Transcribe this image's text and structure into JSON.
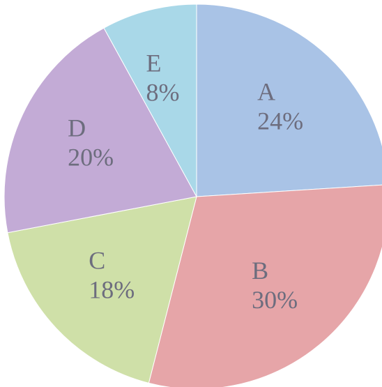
{
  "chart_data": {
    "type": "pie",
    "categories": [
      "A",
      "B",
      "C",
      "D",
      "E"
    ],
    "values": [
      24,
      30,
      18,
      20,
      8
    ],
    "value_labels": [
      "24%",
      "30%",
      "18%",
      "20%",
      "8%"
    ],
    "colors": [
      "#a9c3e6",
      "#e6a5a8",
      "#cfe0a8",
      "#c3abd6",
      "#a9d8e8"
    ]
  }
}
